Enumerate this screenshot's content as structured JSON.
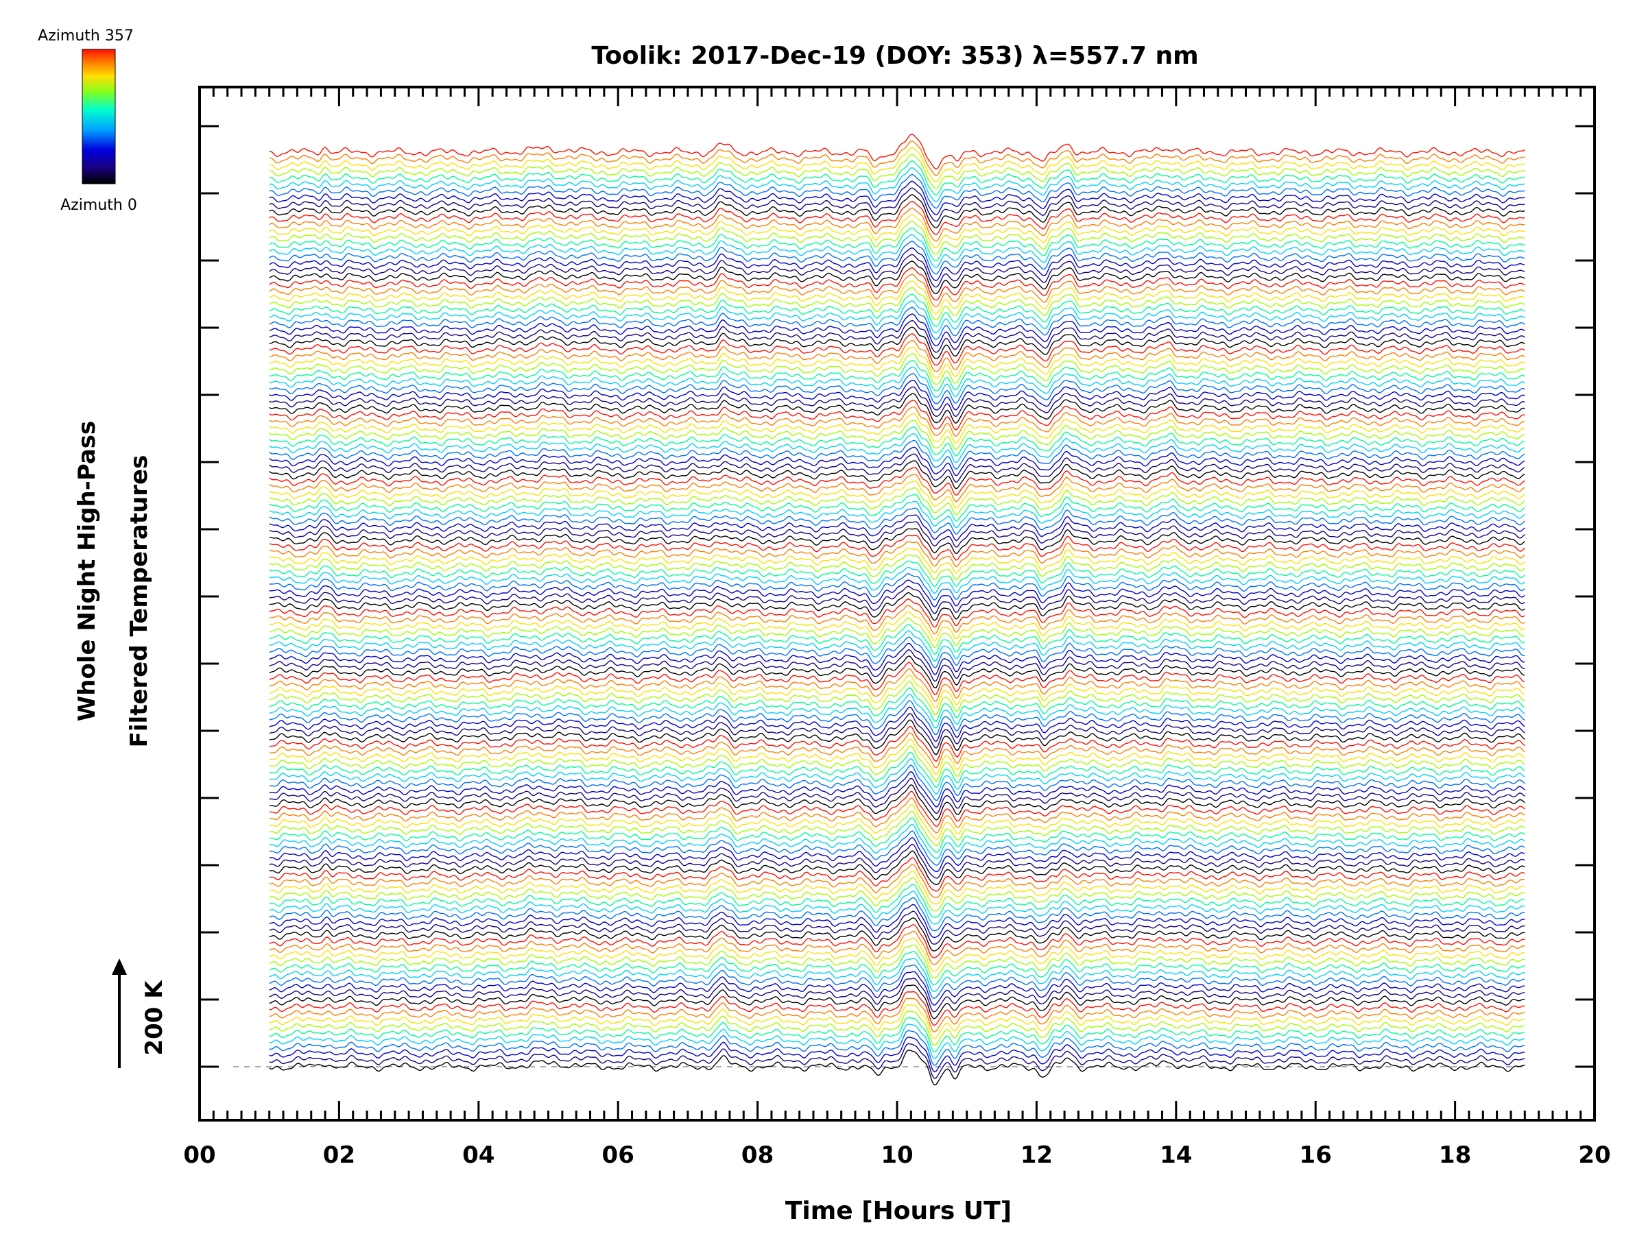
{
  "chart_data": {
    "type": "line",
    "title": "Toolik: 2017-Dec-19 (DOY: 353) λ=557.7 nm",
    "xlabel": "Time [Hours UT]",
    "ylabel_line1": "Whole Night High-Pass",
    "ylabel_line2": "Filtered Temperatures",
    "x_ticks": [
      "00",
      "02",
      "04",
      "06",
      "08",
      "10",
      "12",
      "14",
      "16",
      "18",
      "20"
    ],
    "xlim": [
      0,
      20
    ],
    "data_range_hours": [
      1.0,
      19.0
    ],
    "scale_bar_label": "200 K",
    "colorbar": {
      "top_label": "Azimuth 357",
      "bottom_label": "Azimuth 0"
    },
    "series_count": 140,
    "azimuth_range": [
      0,
      357
    ],
    "baseline_style": "dashed gray",
    "color_cycle": [
      "#000000",
      "#1a0080",
      "#0000cc",
      "#0070ff",
      "#00d0ff",
      "#00ff90",
      "#a0ff00",
      "#ffe000",
      "#ff8000",
      "#ff1000"
    ],
    "wave_events": [
      {
        "hour": 1.8,
        "amp": 0.5,
        "width": 0.08
      },
      {
        "hour": 7.5,
        "amp": 0.8,
        "width": 0.12
      },
      {
        "hour": 9.7,
        "amp": -0.9,
        "width": 0.1
      },
      {
        "hour": 10.2,
        "amp": 1.6,
        "width": 0.15
      },
      {
        "hour": 10.55,
        "amp": -1.6,
        "width": 0.1
      },
      {
        "hour": 10.85,
        "amp": -1.2,
        "width": 0.08
      },
      {
        "hour": 12.1,
        "amp": -0.9,
        "width": 0.1
      },
      {
        "hour": 12.45,
        "amp": 0.8,
        "width": 0.1
      },
      {
        "hour": 13.9,
        "amp": 0.5,
        "width": 0.15
      },
      {
        "hour": 5.0,
        "amp": 0.35,
        "width": 0.4
      }
    ]
  }
}
